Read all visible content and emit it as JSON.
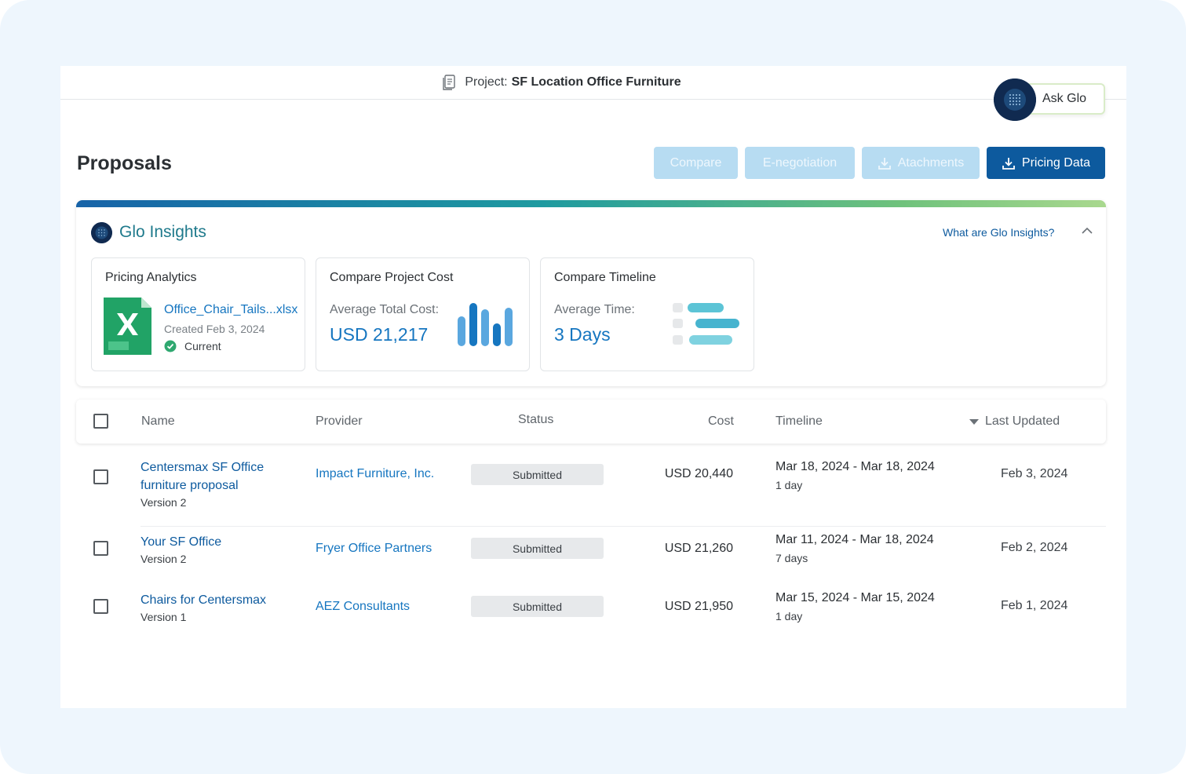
{
  "topbar": {
    "project_prefix": "Project:",
    "project_name": "SF Location Office Furniture"
  },
  "ask_glo": {
    "label": "Ask Glo"
  },
  "page": {
    "title": "Proposals"
  },
  "actions": {
    "compare": "Compare",
    "e_negotiation": "E-negotiation",
    "attachments": "Atachments",
    "pricing_data": "Pricing Data"
  },
  "insights": {
    "title": "Glo Insights",
    "help_link": "What are Glo Insights?",
    "pricing": {
      "title": "Pricing Analytics",
      "file_name": "Office_Chair_Tails...xlsx",
      "created": "Created Feb 3, 2024",
      "status": "Current",
      "file_badge": "XLSX"
    },
    "cost": {
      "title": "Compare Project Cost",
      "label": "Average Total Cost:",
      "value": "USD 21,217"
    },
    "timeline": {
      "title": "Compare Timeline",
      "label": "Average Time:",
      "value": "3 Days"
    }
  },
  "table": {
    "headers": {
      "name": "Name",
      "provider": "Provider",
      "status": "Status",
      "cost": "Cost",
      "timeline": "Timeline",
      "updated": "Last Updated"
    },
    "rows": [
      {
        "name_line1": "Centersmax SF Office",
        "name_line2": "furniture proposal",
        "version": "Version 2",
        "provider": "Impact Furniture, Inc.",
        "status": "Submitted",
        "cost": "USD 20,440",
        "timeline": "Mar 18, 2024 - Mar 18, 2024",
        "duration": "1 day",
        "updated": "Feb 3, 2024"
      },
      {
        "name_line1": "Your SF Office",
        "version": "Version 2",
        "provider": "Fryer Office Partners",
        "status": "Submitted",
        "cost": "USD 21,260",
        "timeline": "Mar 11, 2024 - Mar 18, 2024",
        "duration": "7 days",
        "updated": "Feb 2, 2024"
      },
      {
        "name_line1": "Chairs for Centersmax",
        "version": "Version 1",
        "provider": "AEZ Consultants",
        "status": "Submitted",
        "cost": "USD 21,950",
        "timeline": "Mar 15, 2024 - Mar 15, 2024",
        "duration": "1 day",
        "updated": "Feb 1, 2024"
      }
    ]
  },
  "colors": {
    "primary": "#0d5a9e",
    "link": "#1676c0",
    "insights_title": "#1f7a8c",
    "disabled_button": "#b7dcf2",
    "excel_green": "#21a366"
  }
}
